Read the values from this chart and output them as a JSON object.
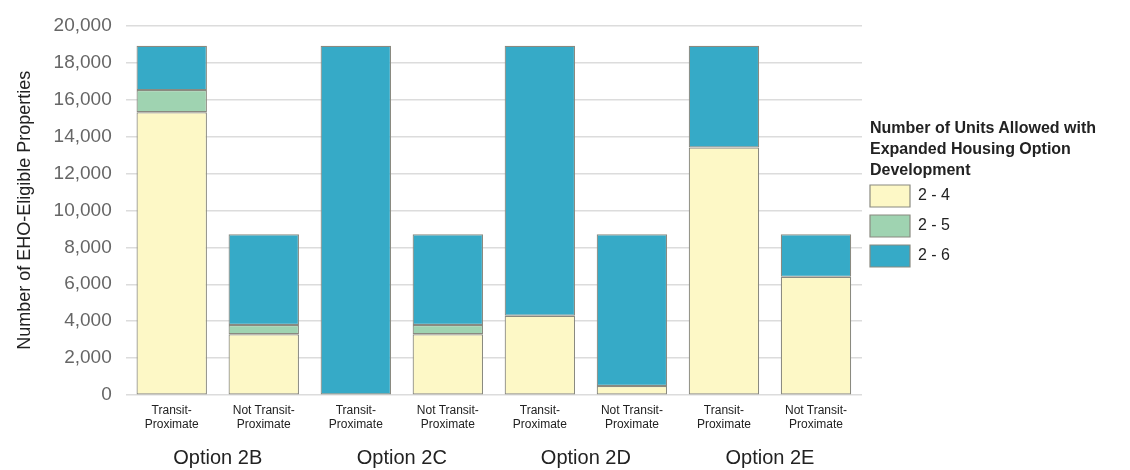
{
  "chart_data": {
    "type": "bar",
    "stacked": true,
    "ylabel": "Number of EHO-Eligible Properties",
    "legend_title": "Number of Units Allowed with Expanded Housing Option Development",
    "legend": "right",
    "grid": "y",
    "categories": [
      "Transit-Proximate",
      "Not Transit-Proximate",
      "Transit-Proximate",
      "Not Transit-Proximate",
      "Transit-Proximate",
      "Not Transit-Proximate",
      "Transit-Proximate",
      "Not Transit-Proximate"
    ],
    "series": [
      {
        "name": "2 - 4",
        "color": "#fdf8c6",
        "values": [
          15300,
          3300,
          0,
          3300,
          4300,
          500,
          13400,
          6400
        ]
      },
      {
        "name": "2 - 5",
        "color": "#9fd3b1",
        "values": [
          1200,
          500,
          0,
          500,
          0,
          0,
          0,
          0
        ]
      },
      {
        "name": "2 - 6",
        "color": "#36aac7",
        "values": [
          2400,
          4900,
          18900,
          4900,
          14600,
          8200,
          5500,
          2300
        ]
      }
    ],
    "ylim": [
      0,
      20000
    ],
    "yticks": [
      0,
      {
        "value": 2000,
        "label": "2,000"
      },
      {
        "value": 4000,
        "label": "4,000"
      },
      {
        "value": 6000,
        "label": "6,000"
      },
      {
        "value": 8000,
        "label": "8,000"
      },
      {
        "value": 10000,
        "label": "10,000"
      },
      {
        "value": 12000,
        "label": "12,000"
      },
      {
        "value": 14000,
        "label": "14,000"
      },
      {
        "value": 16000,
        "label": "16,000"
      },
      {
        "value": 18000,
        "label": "18,000"
      },
      {
        "value": 20000,
        "label": "20,000"
      }
    ],
    "annotations": [
      "Option 2B",
      "Option 2C",
      "Option 2D",
      "Option 2E"
    ]
  }
}
